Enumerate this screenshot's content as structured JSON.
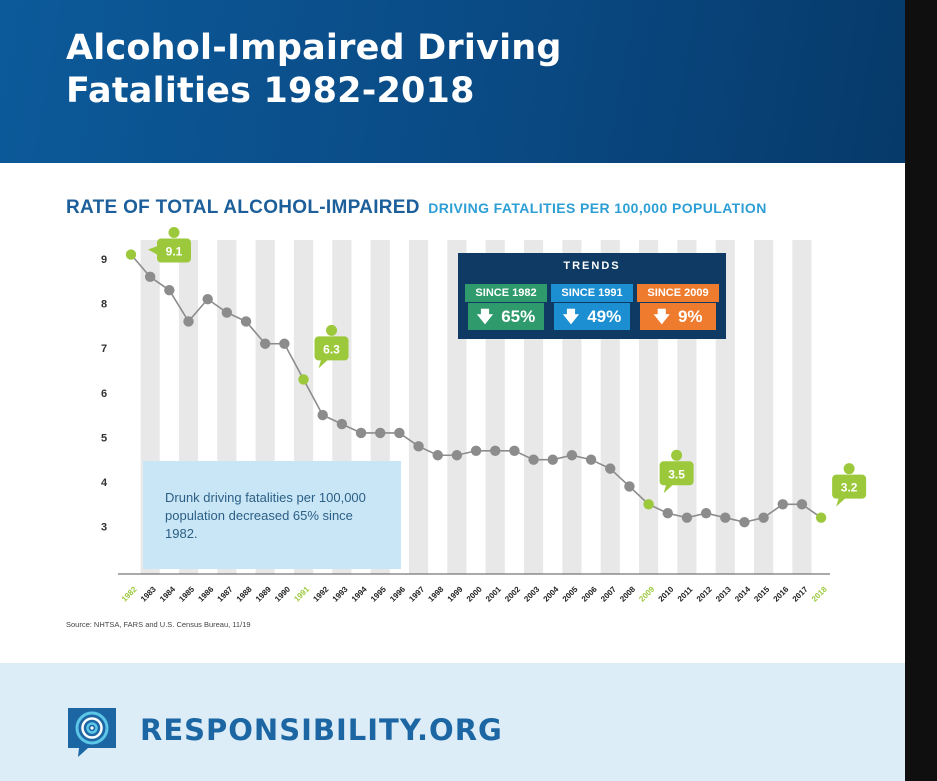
{
  "header": {
    "title_line1": "Alcohol-Impaired Driving",
    "title_line2": "Fatalities 1982-2018"
  },
  "subtitle": {
    "main": "RATE OF TOTAL ALCOHOL-IMPAIRED",
    "rest": "DRIVING FATALITIES PER 100,000 POPULATION"
  },
  "chart_data": {
    "type": "line",
    "title": "RATE OF TOTAL ALCOHOL-IMPAIRED DRIVING FATALITIES PER 100,000 POPULATION",
    "xlabel": "",
    "ylabel": "",
    "categories": [
      "1982",
      "1983",
      "1984",
      "1985",
      "1986",
      "1987",
      "1988",
      "1989",
      "1990",
      "1991",
      "1992",
      "1993",
      "1994",
      "1995",
      "1996",
      "1997",
      "1998",
      "1999",
      "2000",
      "2001",
      "2002",
      "2003",
      "2004",
      "2005",
      "2006",
      "2007",
      "2008",
      "2009",
      "2010",
      "2011",
      "2012",
      "2013",
      "2014",
      "2015",
      "2016",
      "2017",
      "2018"
    ],
    "values": [
      9.1,
      8.6,
      8.3,
      7.6,
      8.1,
      7.8,
      7.6,
      7.1,
      7.1,
      6.3,
      5.5,
      5.3,
      5.1,
      5.1,
      5.1,
      4.8,
      4.6,
      4.6,
      4.7,
      4.7,
      4.7,
      4.5,
      4.5,
      4.6,
      4.5,
      4.3,
      3.9,
      3.5,
      3.3,
      3.2,
      3.3,
      3.2,
      3.1,
      3.2,
      3.5,
      3.5,
      3.2
    ],
    "yticks": [
      3,
      4,
      5,
      6,
      7,
      8,
      9
    ],
    "ylim": [
      2,
      9.7
    ],
    "highlight_years": [
      "1982",
      "1991",
      "2009",
      "2018"
    ],
    "callouts": [
      {
        "year": "1982",
        "label": "9.1"
      },
      {
        "year": "1991",
        "label": "6.3"
      },
      {
        "year": "2009",
        "label": "3.5"
      },
      {
        "year": "2018",
        "label": "3.2"
      }
    ]
  },
  "trends": {
    "title": "TRENDS",
    "cards": [
      {
        "label": "SINCE 1982",
        "value": "65%",
        "color": "#2f9b6c"
      },
      {
        "label": "SINCE 1991",
        "value": "49%",
        "color": "#1b8fd1"
      },
      {
        "label": "SINCE 2009",
        "value": "9%",
        "color": "#ef7b2e"
      }
    ]
  },
  "note": "Drunk driving fatalities per 100,000 population decreased 65% since 1982.",
  "source": "Source: NHTSA, FARS and U.S. Census Bureau, 11/19",
  "footer": {
    "brand": "RESPONSIBILITY.ORG",
    "logo_icon": "target-icon"
  },
  "colors": {
    "accent_green": "#9cc93c",
    "line_gray": "#8c8c8c",
    "header_blue": "#0a4a84",
    "brand_blue": "#1b66a3"
  }
}
